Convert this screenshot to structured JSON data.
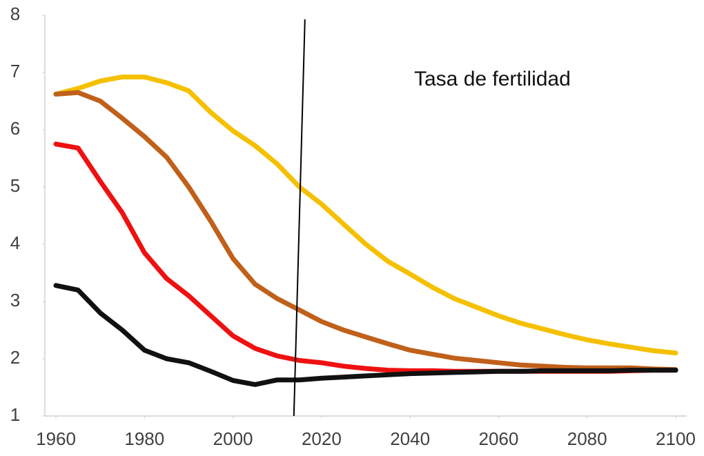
{
  "chart_data": {
    "type": "line",
    "annotation": "Tasa de fertilidad",
    "x": [
      1960,
      1965,
      1970,
      1975,
      1980,
      1985,
      1990,
      1995,
      2000,
      2005,
      2010,
      2015,
      2020,
      2025,
      2030,
      2035,
      2040,
      2045,
      2050,
      2055,
      2060,
      2065,
      2070,
      2075,
      2080,
      2085,
      2090,
      2095,
      2100
    ],
    "series": [
      {
        "color": "#f5c000",
        "values": [
          6.62,
          6.72,
          6.85,
          6.92,
          6.92,
          6.82,
          6.68,
          6.3,
          5.98,
          5.72,
          5.4,
          5.0,
          4.7,
          4.35,
          4.0,
          3.7,
          3.48,
          3.25,
          3.05,
          2.9,
          2.75,
          2.62,
          2.52,
          2.42,
          2.33,
          2.26,
          2.2,
          2.14,
          2.1
        ]
      },
      {
        "color": "#c0601a",
        "values": [
          6.62,
          6.65,
          6.5,
          6.2,
          5.88,
          5.52,
          5.0,
          4.4,
          3.75,
          3.3,
          3.05,
          2.85,
          2.65,
          2.5,
          2.38,
          2.26,
          2.15,
          2.08,
          2.01,
          1.97,
          1.93,
          1.89,
          1.87,
          1.85,
          1.84,
          1.84,
          1.84,
          1.82,
          1.81
        ]
      },
      {
        "color": "#ee1111",
        "values": [
          5.75,
          5.68,
          5.1,
          4.55,
          3.85,
          3.4,
          3.1,
          2.75,
          2.4,
          2.18,
          2.05,
          1.97,
          1.93,
          1.87,
          1.83,
          1.8,
          1.79,
          1.79,
          1.78,
          1.78,
          1.78,
          1.78,
          1.78,
          1.78,
          1.78,
          1.78,
          1.79,
          1.8,
          1.8
        ]
      },
      {
        "color": "#111111",
        "values": [
          3.28,
          3.2,
          2.8,
          2.5,
          2.15,
          2.0,
          1.93,
          1.78,
          1.62,
          1.55,
          1.63,
          1.63,
          1.66,
          1.68,
          1.7,
          1.72,
          1.74,
          1.75,
          1.76,
          1.77,
          1.78,
          1.78,
          1.79,
          1.79,
          1.79,
          1.79,
          1.8,
          1.8,
          1.8
        ]
      }
    ],
    "vline_x": 2015,
    "xlim": [
      1957.5,
      2102.5
    ],
    "xticks": [
      1960,
      1980,
      2000,
      2020,
      2040,
      2060,
      2080,
      2100
    ],
    "ylim": [
      1,
      8
    ],
    "yticks": [
      1,
      2,
      3,
      4,
      5,
      6,
      7,
      8
    ]
  }
}
